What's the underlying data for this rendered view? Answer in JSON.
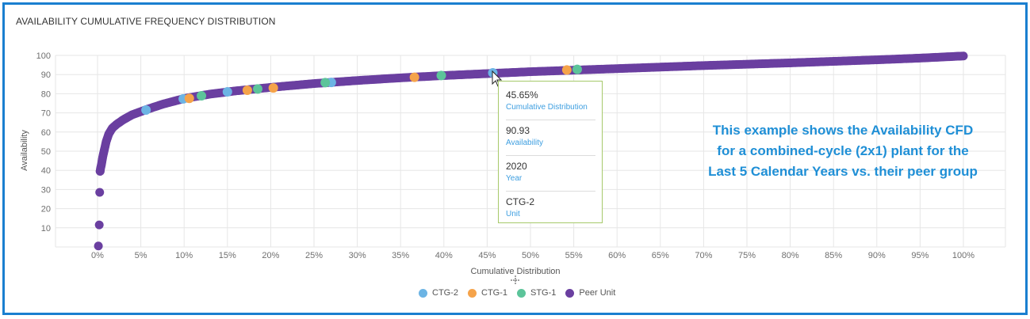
{
  "panel": {
    "title": "AVAILABILITY CUMULATIVE FREQUENCY DISTRIBUTION"
  },
  "annotation": {
    "lines": [
      "This example shows the Availability CFD",
      "for a combined-cycle (2x1) plant for the",
      "Last 5 Calendar Years vs. their peer group"
    ]
  },
  "tooltip": {
    "rows": [
      {
        "value": "45.65%",
        "label": "Cumulative Distribution"
      },
      {
        "value": "90.93",
        "label": "Availability"
      },
      {
        "value": "2020",
        "label": "Year"
      },
      {
        "value": "CTG-2",
        "label": "Unit"
      }
    ]
  },
  "colors": {
    "frame": "#1a7fd0",
    "peer": "#6a3fa0",
    "ctg2": "#6cb4e4",
    "ctg1": "#f5a34a",
    "stg1": "#5cc49a",
    "annotation": "#1f8fd6",
    "tooltip_border": "#a6c96a"
  },
  "chart_data": {
    "type": "scatter",
    "title": "AVAILABILITY CUMULATIVE FREQUENCY DISTRIBUTION",
    "xlabel": "Cumulative Distribution",
    "ylabel": "Availability",
    "xlim": [
      0,
      100
    ],
    "ylim": [
      0,
      100
    ],
    "x_ticks": [
      "0%",
      "5%",
      "10%",
      "15%",
      "20%",
      "25%",
      "30%",
      "35%",
      "40%",
      "45%",
      "50%",
      "55%",
      "60%",
      "65%",
      "70%",
      "75%",
      "80%",
      "85%",
      "90%",
      "95%",
      "100%"
    ],
    "y_ticks": [
      "10",
      "20",
      "30",
      "40",
      "50",
      "60",
      "70",
      "80",
      "90",
      "100"
    ],
    "grid": true,
    "legend_position": "bottom",
    "series": [
      {
        "name": "CTG-2",
        "color": "#6cb4e4",
        "x": [
          5.6,
          9.9,
          15.0,
          27.0,
          45.65
        ],
        "y": [
          71.5,
          77.3,
          81.0,
          85.9,
          90.93
        ]
      },
      {
        "name": "CTG-1",
        "color": "#f5a34a",
        "x": [
          10.6,
          17.3,
          20.3,
          36.6,
          54.2
        ],
        "y": [
          77.6,
          81.8,
          83.0,
          88.6,
          92.4
        ]
      },
      {
        "name": "STG-1",
        "color": "#5cc49a",
        "x": [
          12.0,
          18.5,
          26.3,
          39.7,
          55.4
        ],
        "y": [
          78.9,
          82.5,
          85.8,
          89.5,
          92.7
        ]
      },
      {
        "name": "Peer Unit",
        "color": "#6a3fa0",
        "x": [
          0.1,
          0.2,
          0.25,
          0.3,
          0.35,
          0.45,
          0.6,
          0.8,
          1.0,
          1.3,
          1.7,
          2.2,
          3.0,
          4.0,
          5.5,
          7.5,
          10,
          13,
          16,
          20,
          25,
          30,
          35,
          40,
          45,
          50,
          55,
          60,
          65,
          70,
          75,
          80,
          85,
          90,
          95,
          100
        ],
        "y": [
          0.5,
          11.5,
          28.5,
          39.5,
          41,
          43,
          47,
          51,
          55,
          59,
          62,
          64,
          66.5,
          69,
          71.5,
          74.5,
          77.5,
          79.8,
          81.5,
          83.3,
          85.3,
          86.9,
          88.3,
          89.5,
          90.5,
          91.5,
          92.3,
          93.1,
          93.9,
          94.7,
          95.4,
          96.1,
          96.9,
          97.7,
          98.6,
          99.7
        ]
      }
    ]
  }
}
